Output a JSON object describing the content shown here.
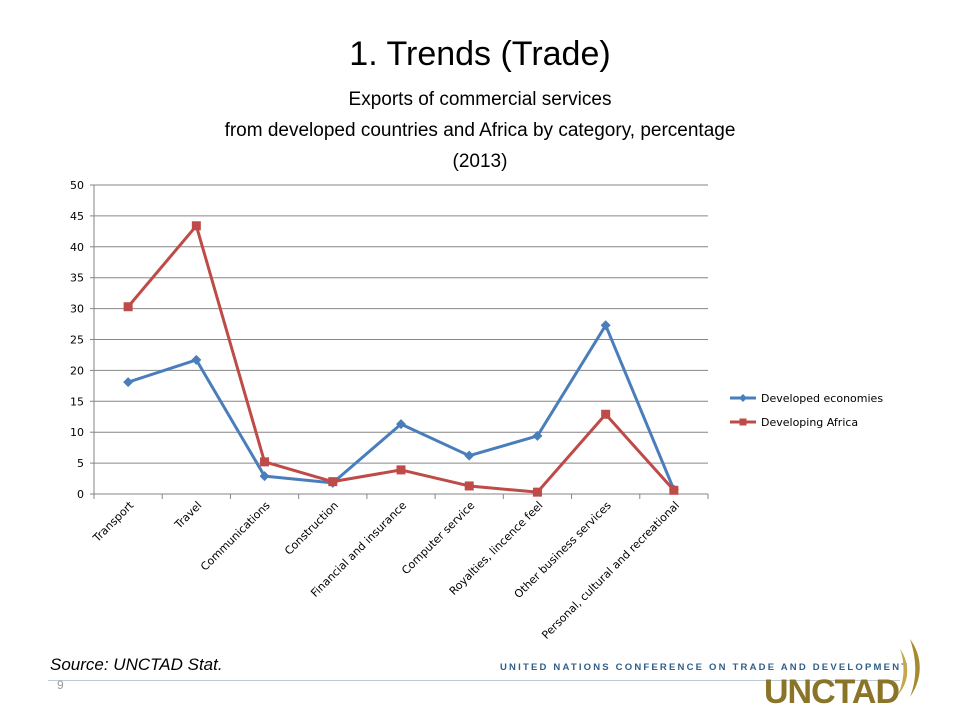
{
  "slide": {
    "title": "1. Trends (Trade)",
    "subtitle_lines": [
      "Exports of commercial services",
      "from developed countries and Africa by category, percentage",
      "(2013)"
    ],
    "source": "Source: UNCTAD Stat.",
    "page_number": "9",
    "org_name": "UNITED NATIONS CONFERENCE ON TRADE AND DEVELOPMENT",
    "logo_text": "UNCTAD"
  },
  "colors": {
    "developed": "#4a7ebb",
    "africa": "#be4b48",
    "grid": "#868686",
    "logo_gold": "#a68a2e",
    "org_blue": "#2f5f8a"
  },
  "chart_data": {
    "type": "line",
    "title": "Exports of commercial services from developed countries and Africa by category, percentage (2013)",
    "xlabel": "",
    "ylabel": "",
    "ylim": [
      0,
      50
    ],
    "yticks": [
      0,
      5,
      10,
      15,
      20,
      25,
      30,
      35,
      40,
      45,
      50
    ],
    "grid": true,
    "legend": "right",
    "categories": [
      "Transport",
      "Travel",
      "Communications",
      "Construction",
      "Financial and insurance",
      "Computer service",
      "Royalties, lincence feel",
      "Other business services",
      "Personal, cultural and recreational"
    ],
    "series": [
      {
        "name": "Developed economies",
        "marker": "diamond",
        "values": [
          18.1,
          21.7,
          2.9,
          1.8,
          11.3,
          6.2,
          9.4,
          27.3,
          0.7
        ]
      },
      {
        "name": "Developing Africa",
        "marker": "square",
        "values": [
          30.3,
          43.4,
          5.2,
          2.0,
          3.9,
          1.3,
          0.3,
          12.9,
          0.6
        ]
      }
    ]
  }
}
